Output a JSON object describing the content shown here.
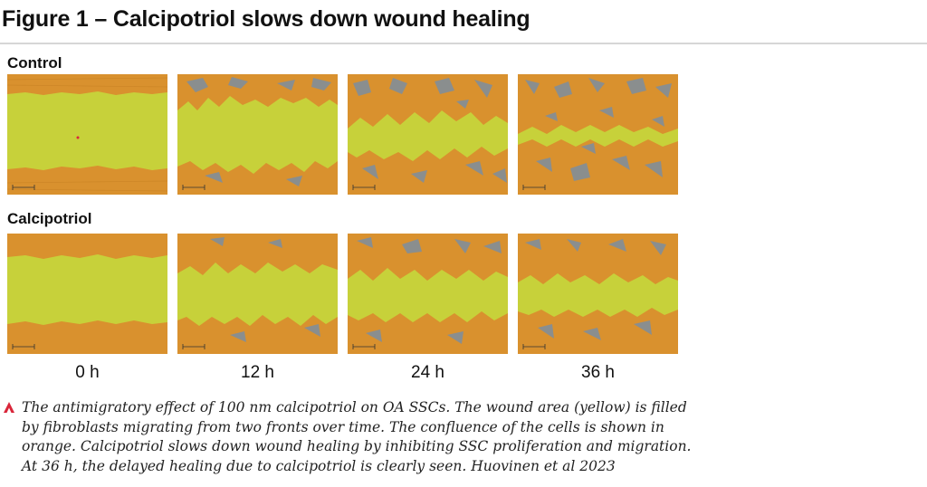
{
  "figure": {
    "title": "Figure 1 – Calcipotriol slows down wound healing"
  },
  "rows": [
    {
      "label": "Control"
    },
    {
      "label": "Calcipotriol"
    }
  ],
  "timepoints": [
    "0 h",
    "12 h",
    "24 h",
    "36 h"
  ],
  "caption": {
    "text": "The antimigratory effect of 100 nm calcipotriol on OA SSCs. The wound area (yellow) is filled by fibroblasts migrating from two fronts over time. The confluence of the cells is shown in orange. Calcipotriol slows down wound healing by inhibiting SSC proliferation and migration. At 36 h, the delayed healing due to calcipotriol is clearly seen. Huovinen et al 2023"
  },
  "colors": {
    "wound_yellow": "#c7d13a",
    "confluence_orange": "#d9912e",
    "empty_gray": "#8a8e8e",
    "accent_red": "#d9263a"
  }
}
